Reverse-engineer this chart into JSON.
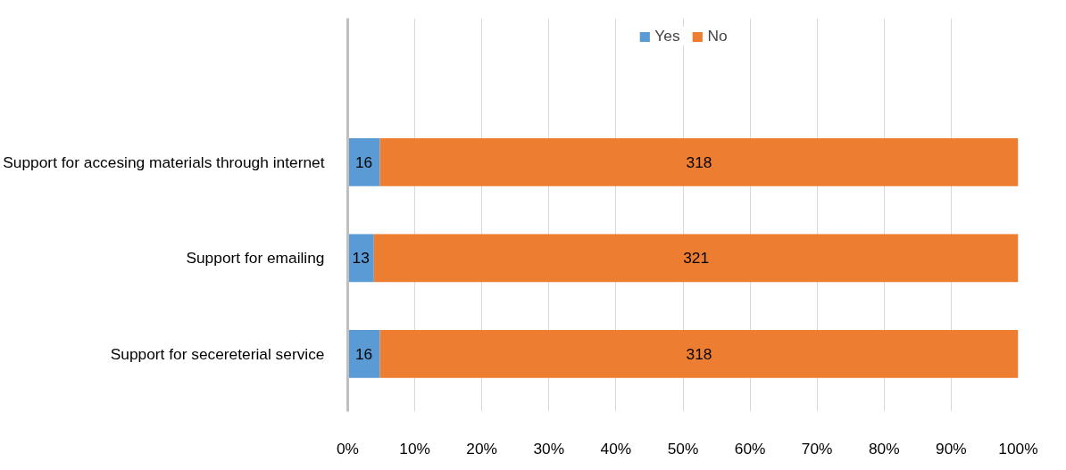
{
  "chart_data": {
    "type": "bar",
    "orientation": "horizontal",
    "stacked": true,
    "categories": [
      "Support for accesing materials through internet",
      "Support for emailing",
      "Support for secereterial service"
    ],
    "series": [
      {
        "name": "Yes",
        "color": "#5b9bd5",
        "values": [
          4.8,
          3.9,
          4.8
        ]
      },
      {
        "name": "No",
        "color": "#ed7d31",
        "values": [
          95.2,
          96.1,
          95.2
        ]
      }
    ],
    "annotations": [
      "16",
      "13",
      "16",
      "318",
      "321",
      "318"
    ],
    "xlim": [
      0,
      100
    ],
    "xticks": [
      {
        "value": 0,
        "label": "0%"
      },
      {
        "value": 10,
        "label": "10%"
      },
      {
        "value": 20,
        "label": "20%"
      },
      {
        "value": 30,
        "label": "30%"
      },
      {
        "value": 40,
        "label": "40%"
      },
      {
        "value": 50,
        "label": "50%"
      },
      {
        "value": 60,
        "label": "60%"
      },
      {
        "value": 70,
        "label": "70%"
      },
      {
        "value": 80,
        "label": "80%"
      },
      {
        "value": 90,
        "label": "90%"
      },
      {
        "value": 100,
        "label": "100%"
      }
    ],
    "grid": "x",
    "legend": "top"
  }
}
